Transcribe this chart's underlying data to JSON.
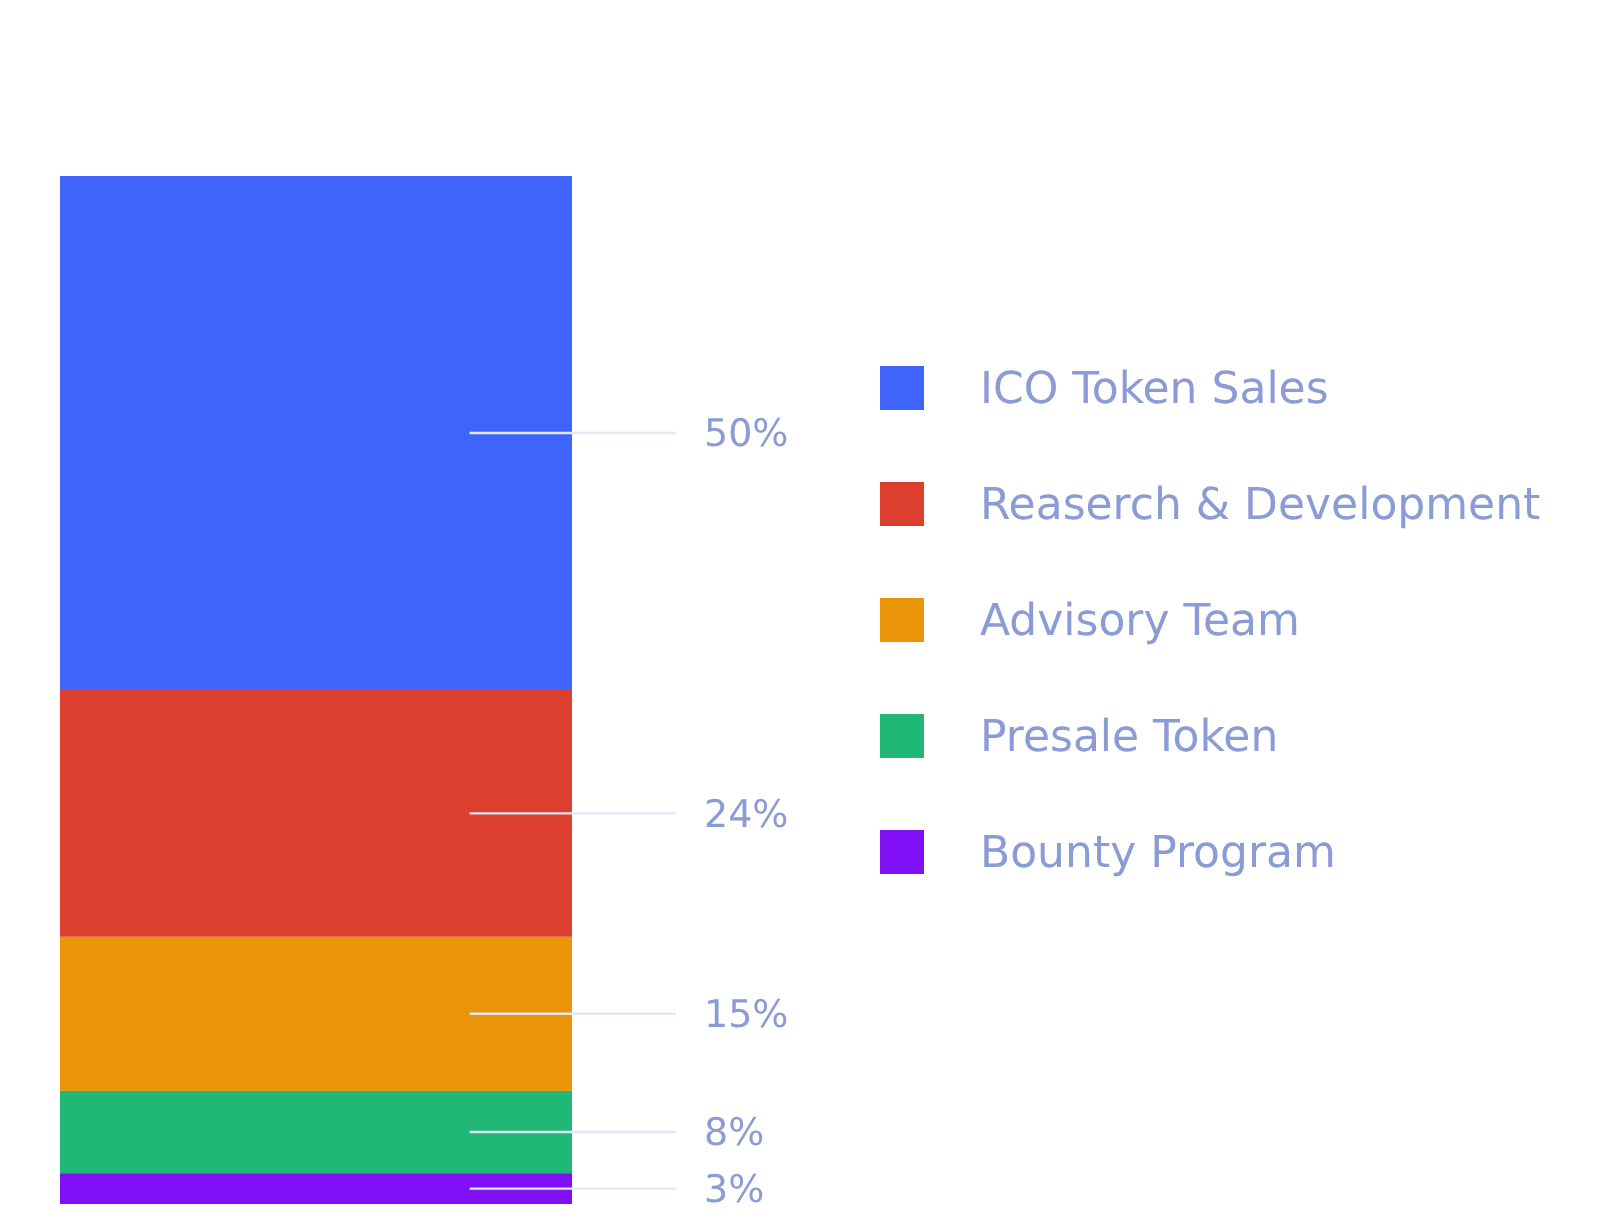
{
  "chart_data": {
    "type": "bar",
    "stacked": true,
    "categories": [
      null
    ],
    "legend": "right",
    "series": [
      {
        "name": "ICO Token Sales",
        "color": "#3f64fb",
        "values": [
          50
        ],
        "value_labels": [
          "50%"
        ]
      },
      {
        "name": "Reaserch & Development",
        "color": "#dc3f2e",
        "values": [
          24
        ],
        "value_labels": [
          "24%"
        ]
      },
      {
        "name": "Advisory Team",
        "color": "#ea9508",
        "values": [
          15
        ],
        "value_labels": [
          "15%"
        ]
      },
      {
        "name": "Presale Token",
        "color": "#21b877",
        "values": [
          8
        ],
        "value_labels": [
          "8%"
        ]
      },
      {
        "name": "Bounty Program",
        "color": "#7f10f5",
        "values": [
          3
        ],
        "value_labels": [
          "3%"
        ]
      }
    ]
  }
}
